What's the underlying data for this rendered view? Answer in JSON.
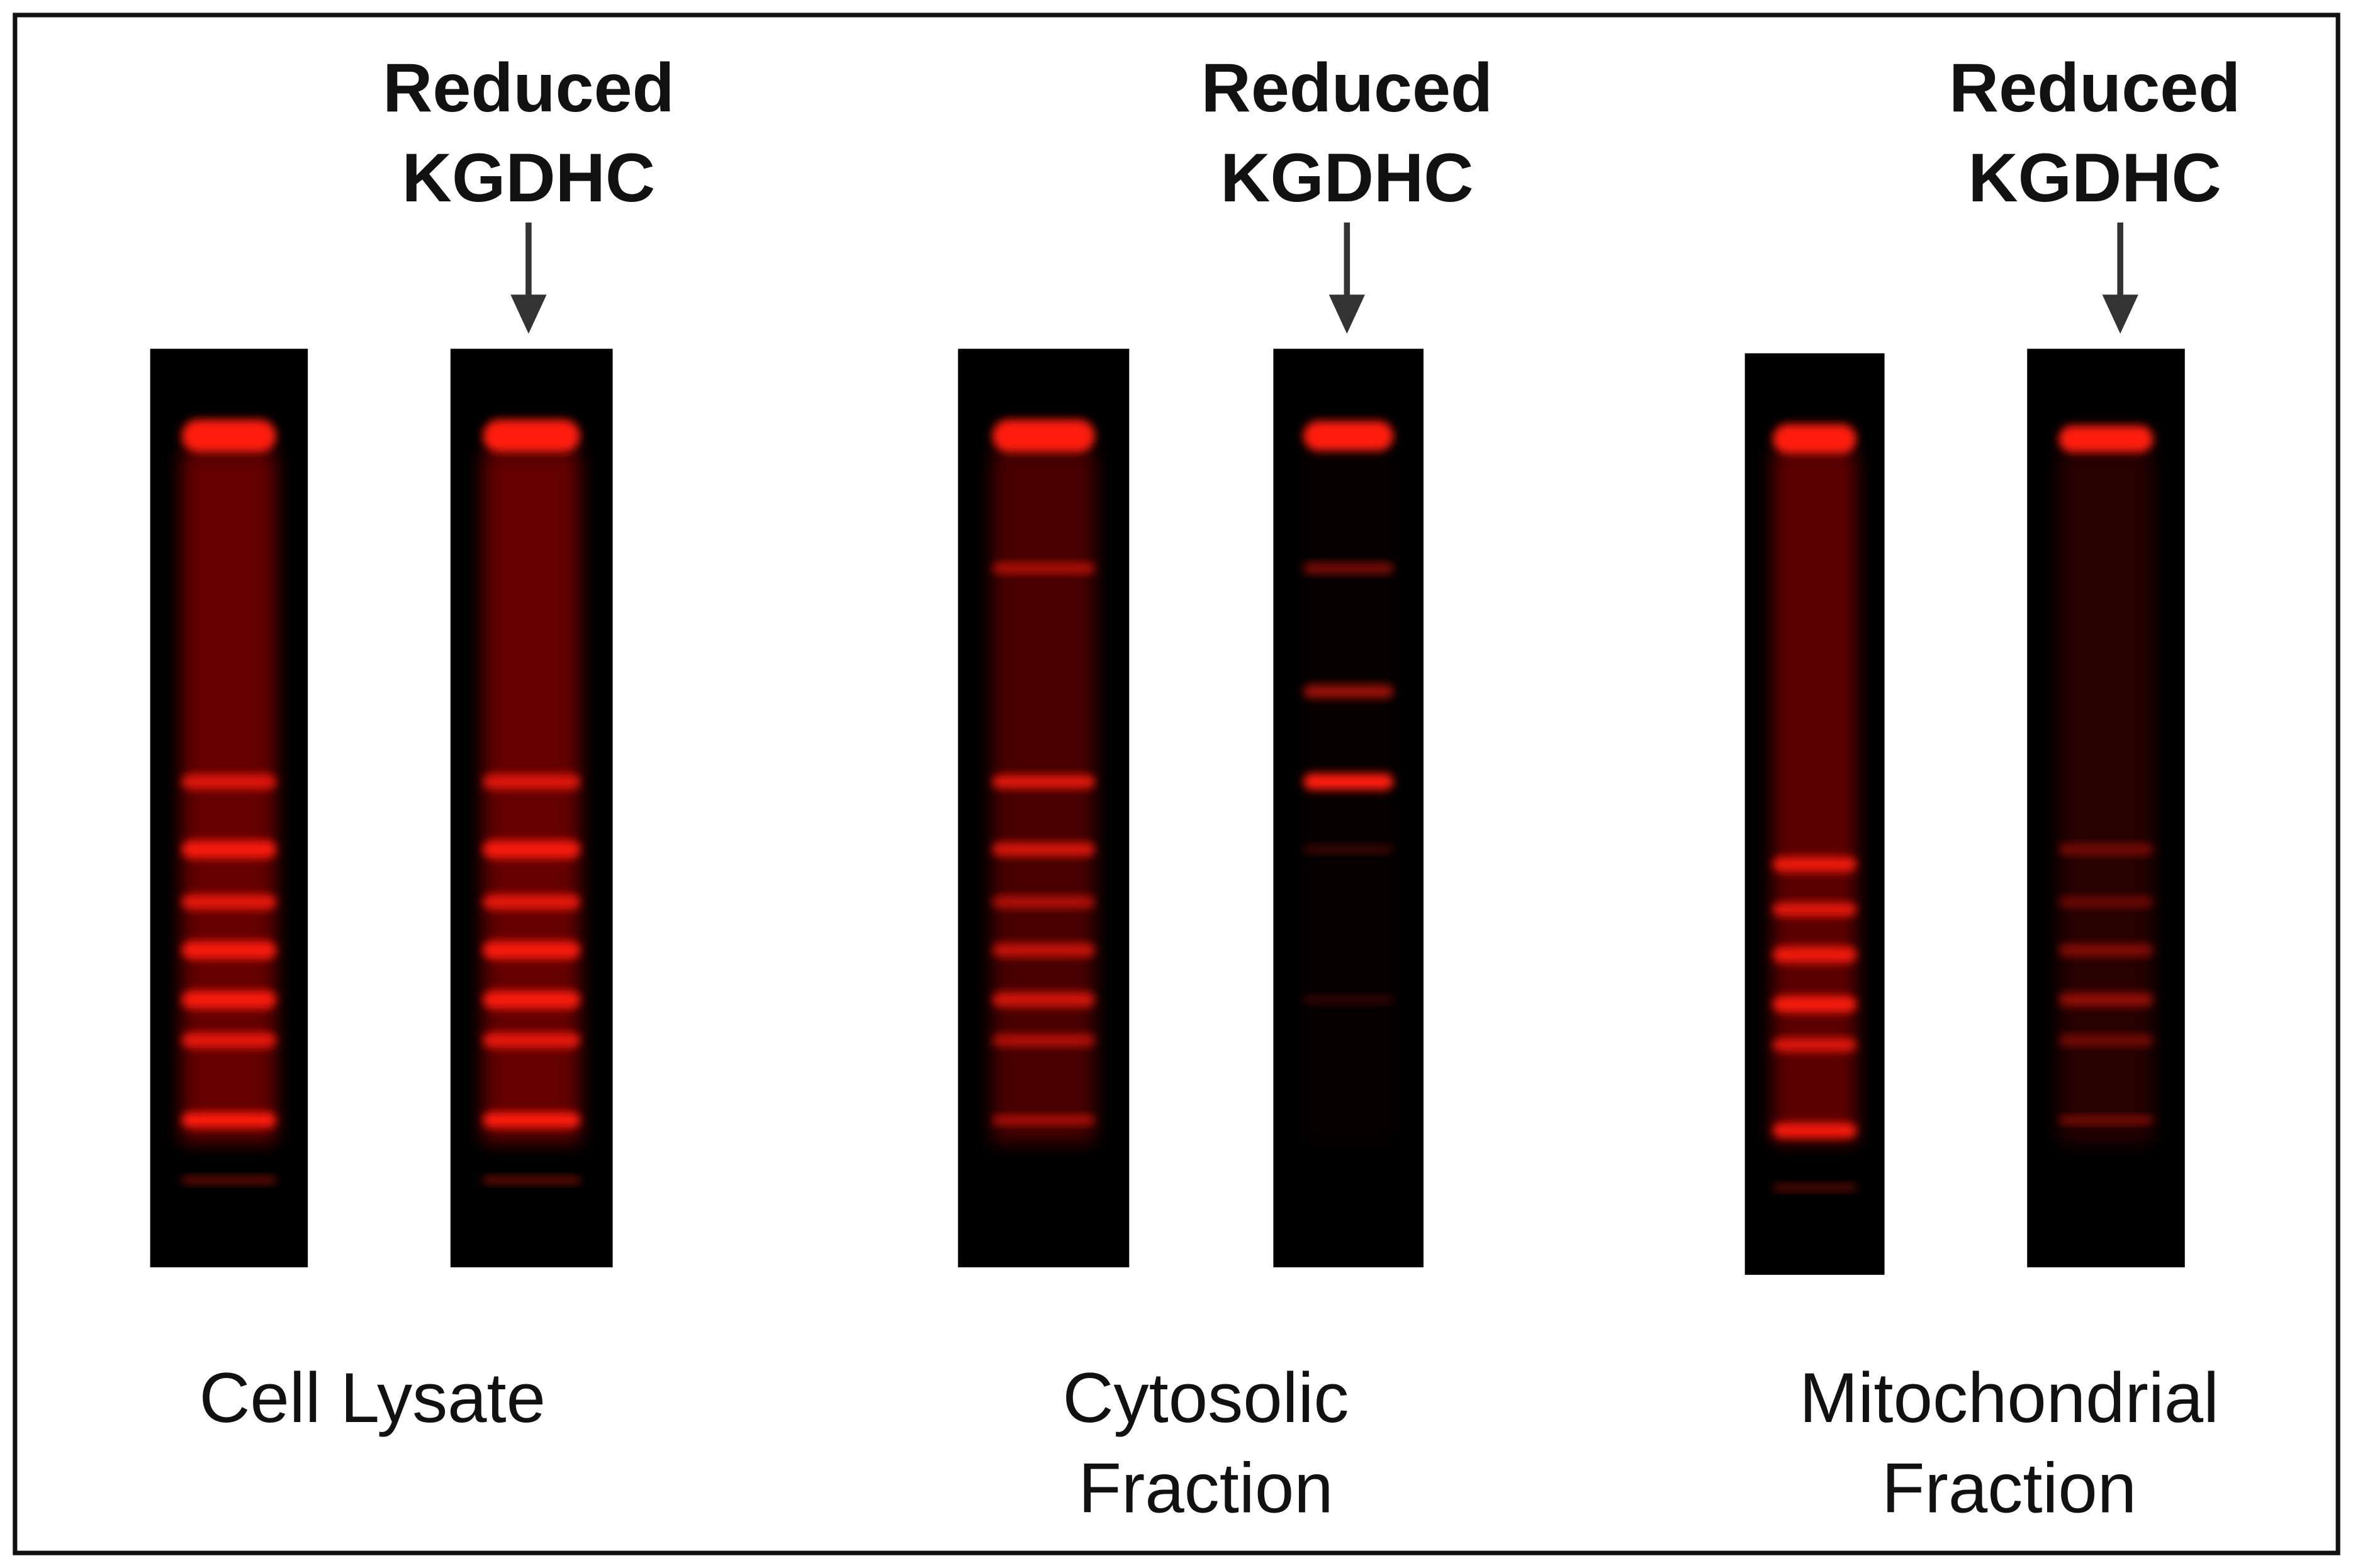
{
  "panels": [
    {
      "annotation": [
        "Reduced",
        "KGDHC"
      ],
      "label": [
        "Cell Lysate"
      ]
    },
    {
      "annotation": [
        "Reduced",
        "KGDHC"
      ],
      "label": [
        "Cytosolic",
        "Fraction"
      ]
    },
    {
      "annotation": [
        "Reduced",
        "KGDHC"
      ],
      "label": [
        "Mitochondrial",
        "Fraction"
      ]
    }
  ]
}
